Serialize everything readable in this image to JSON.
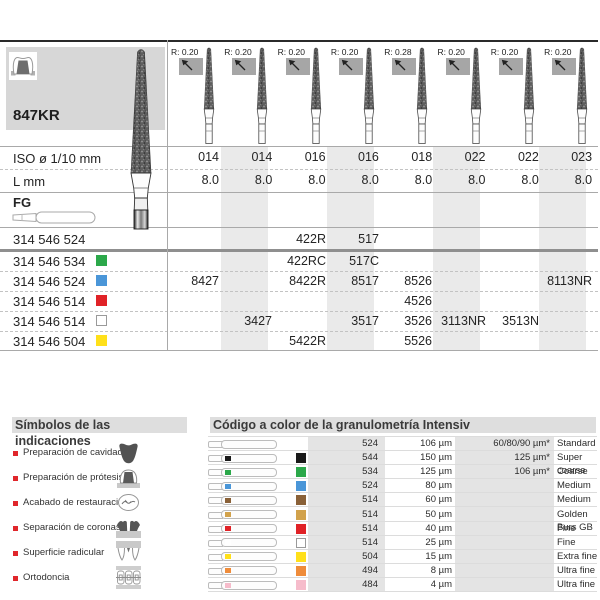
{
  "product": {
    "title": "847KR",
    "iso_label": "ISO ø 1/10 mm",
    "length_label": "L mm",
    "shank_label": "FG",
    "columns": [
      {
        "r": "R: 0.20",
        "iso": "014",
        "l": "8.0"
      },
      {
        "r": "R: 0.20",
        "iso": "014",
        "l": "8.0"
      },
      {
        "r": "R: 0.20",
        "iso": "016",
        "l": "8.0"
      },
      {
        "r": "R: 0.20",
        "iso": "016",
        "l": "8.0"
      },
      {
        "r": "R: 0.28",
        "iso": "018",
        "l": "8.0"
      },
      {
        "r": "R: 0.20",
        "iso": "022",
        "l": "8.0"
      },
      {
        "r": "R: 0.20",
        "iso": "022",
        "l": "8.0"
      },
      {
        "r": "R: 0.20",
        "iso": "023",
        "l": "8.0"
      }
    ],
    "rows": [
      {
        "code": "314 546 524",
        "chip": null,
        "chip_name": "none",
        "cells": [
          "",
          "",
          "422R",
          "517",
          "",
          "",
          "",
          ""
        ]
      },
      {
        "code": "314 546 534",
        "chip": "#2ba84a",
        "chip_name": "green",
        "cells": [
          "",
          "",
          "422RC",
          "517C",
          "",
          "",
          "",
          ""
        ]
      },
      {
        "code": "314 546 524",
        "chip": "#4a96d8",
        "chip_name": "blue",
        "cells": [
          "8427",
          "",
          "8422R",
          "8517",
          "8526",
          "",
          "",
          "8113NR"
        ]
      },
      {
        "code": "314 546 514",
        "chip": "#e02227",
        "chip_name": "red",
        "cells": [
          "",
          "",
          "",
          "",
          "4526",
          "",
          "",
          ""
        ]
      },
      {
        "code": "314 546 514",
        "chip": "#ffffff",
        "chip_name": "white",
        "cells": [
          "",
          "3427",
          "",
          "3517",
          "3526",
          "3113NR",
          "3513N",
          ""
        ]
      },
      {
        "code": "314 546 504",
        "chip": "#ffe01a",
        "chip_name": "yellow",
        "cells": [
          "",
          "",
          "5422R",
          "",
          "5526",
          "",
          "",
          ""
        ]
      }
    ]
  },
  "symbols": {
    "title": "Símbolos de las indicaciones",
    "items": [
      {
        "label": "Preparación de cavidades",
        "icon": "cavity-preparation-icon"
      },
      {
        "label": "Preparación de prótesis",
        "icon": "prosthesis-preparation-icon"
      },
      {
        "label": "Acabado de restauraciones",
        "icon": "restoration-finishing-icon"
      },
      {
        "label": "Separación de coronas",
        "icon": "crown-separation-icon"
      },
      {
        "label": "Superficie radicular",
        "icon": "root-surface-icon"
      },
      {
        "label": "Ortodoncia",
        "icon": "orthodontics-icon"
      }
    ]
  },
  "granulometry": {
    "title": "Código a color de la granulometría Intensiv",
    "rows": [
      {
        "color": null,
        "color_name": "none",
        "code": "524",
        "size": "106 µm",
        "alt": "60/80/90 µm*",
        "label": "Standard"
      },
      {
        "color": "#1a1a1a",
        "color_name": "black",
        "code": "544",
        "size": "150 µm",
        "alt": "125 µm*",
        "label": "Super coarse"
      },
      {
        "color": "#2ba84a",
        "color_name": "green",
        "code": "534",
        "size": "125 µm",
        "alt": "106 µm*",
        "label": "Coarse"
      },
      {
        "color": "#4a96d8",
        "color_name": "blue",
        "code": "524",
        "size": "80 µm",
        "alt": "",
        "label": "Medium"
      },
      {
        "color": "#8a6138",
        "color_name": "brown",
        "code": "514",
        "size": "60 µm",
        "alt": "",
        "label": "Medium"
      },
      {
        "color": "#d2a24c",
        "color_name": "gold",
        "code": "514",
        "size": "50 µm",
        "alt": "",
        "label": "Golden Burs GB"
      },
      {
        "color": "#e02227",
        "color_name": "red",
        "code": "514",
        "size": "40 µm",
        "alt": "",
        "label": "Fine"
      },
      {
        "color": "#ffffff",
        "color_name": "white",
        "code": "514",
        "size": "25 µm",
        "alt": "",
        "label": "Fine"
      },
      {
        "color": "#ffe01a",
        "color_name": "yellow",
        "code": "504",
        "size": "15 µm",
        "alt": "",
        "label": "Extra fine"
      },
      {
        "color": "#ef8c3a",
        "color_name": "orange",
        "code": "494",
        "size": "8 µm",
        "alt": "",
        "label": "Ultra fine"
      },
      {
        "color": "#f6bccb",
        "color_name": "pink",
        "code": "484",
        "size": "4 µm",
        "alt": "",
        "label": "Ultra fine"
      }
    ]
  },
  "colors": {
    "bullet_red": "#e0262b",
    "header_box_gray": "#d7d7d7",
    "column_stripe_gray": "#eaeaea",
    "band_gray": "#e4e4e4",
    "section_header_gray": "#dedede"
  }
}
